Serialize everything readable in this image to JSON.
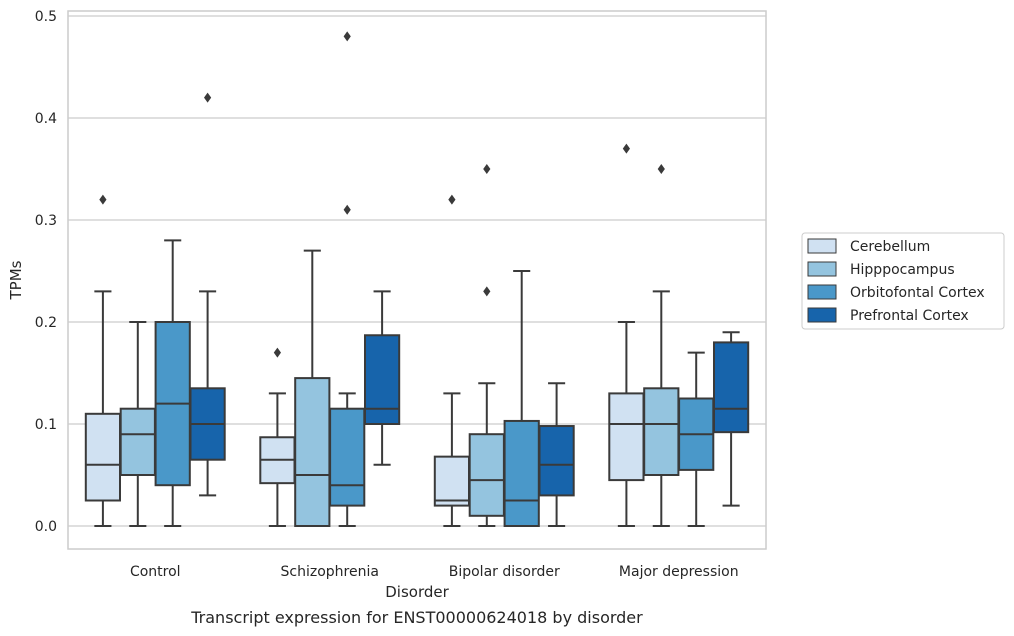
{
  "chart_data": {
    "type": "box",
    "title": "",
    "caption": "Transcript expression for ENST00000624018 by disorder",
    "xlabel": "Disorder",
    "ylabel": "TPMs",
    "ylim": [
      -0.023,
      0.505
    ],
    "yticks": [
      "0.0",
      "0.1",
      "0.2",
      "0.3",
      "0.4",
      "0.5"
    ],
    "grid": true,
    "legend_position": "right",
    "categories": [
      "Control",
      "Schizophrenia",
      "Bipolar disorder",
      "Major depression"
    ],
    "series": [
      {
        "name": "Cerebellum",
        "color": "#d0e1f2",
        "boxes": [
          {
            "whisker_low": 0.0,
            "q1": 0.025,
            "median": 0.06,
            "q3": 0.11,
            "whisker_high": 0.23,
            "outliers": [
              0.32
            ]
          },
          {
            "whisker_low": 0.0,
            "q1": 0.042,
            "median": 0.065,
            "q3": 0.087,
            "whisker_high": 0.13,
            "outliers": [
              0.17
            ]
          },
          {
            "whisker_low": 0.0,
            "q1": 0.02,
            "median": 0.025,
            "q3": 0.068,
            "whisker_high": 0.13,
            "outliers": [
              0.32
            ]
          },
          {
            "whisker_low": 0.0,
            "q1": 0.045,
            "median": 0.1,
            "q3": 0.13,
            "whisker_high": 0.2,
            "outliers": [
              0.37
            ]
          }
        ]
      },
      {
        "name": "Hipppocampus",
        "color": "#94c4df",
        "boxes": [
          {
            "whisker_low": 0.0,
            "q1": 0.05,
            "median": 0.09,
            "q3": 0.115,
            "whisker_high": 0.2,
            "outliers": []
          },
          {
            "whisker_low": 0.0,
            "q1": 0.0,
            "median": 0.05,
            "q3": 0.145,
            "whisker_high": 0.27,
            "outliers": []
          },
          {
            "whisker_low": 0.0,
            "q1": 0.01,
            "median": 0.045,
            "q3": 0.09,
            "whisker_high": 0.14,
            "outliers": [
              0.23,
              0.35
            ]
          },
          {
            "whisker_low": 0.0,
            "q1": 0.05,
            "median": 0.1,
            "q3": 0.135,
            "whisker_high": 0.23,
            "outliers": [
              0.35
            ]
          }
        ]
      },
      {
        "name": "Orbitofontal Cortex",
        "color": "#4a98c9",
        "boxes": [
          {
            "whisker_low": 0.0,
            "q1": 0.04,
            "median": 0.12,
            "q3": 0.2,
            "whisker_high": 0.28,
            "outliers": []
          },
          {
            "whisker_low": 0.0,
            "q1": 0.02,
            "median": 0.04,
            "q3": 0.115,
            "whisker_high": 0.13,
            "outliers": [
              0.31,
              0.48
            ]
          },
          {
            "whisker_low": 0.0,
            "q1": 0.0,
            "median": 0.025,
            "q3": 0.103,
            "whisker_high": 0.25,
            "outliers": []
          },
          {
            "whisker_low": 0.0,
            "q1": 0.055,
            "median": 0.09,
            "q3": 0.125,
            "whisker_high": 0.17,
            "outliers": []
          }
        ]
      },
      {
        "name": "Prefrontal Cortex",
        "color": "#1764ab",
        "boxes": [
          {
            "whisker_low": 0.03,
            "q1": 0.065,
            "median": 0.1,
            "q3": 0.135,
            "whisker_high": 0.23,
            "outliers": [
              0.42
            ]
          },
          {
            "whisker_low": 0.06,
            "q1": 0.1,
            "median": 0.115,
            "q3": 0.187,
            "whisker_high": 0.23,
            "outliers": []
          },
          {
            "whisker_low": 0.0,
            "q1": 0.03,
            "median": 0.06,
            "q3": 0.098,
            "whisker_high": 0.14,
            "outliers": []
          },
          {
            "whisker_low": 0.02,
            "q1": 0.092,
            "median": 0.115,
            "q3": 0.18,
            "whisker_high": 0.19,
            "outliers": []
          }
        ]
      }
    ]
  }
}
